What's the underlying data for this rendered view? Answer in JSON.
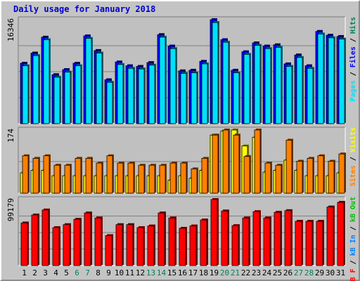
{
  "chart_data": {
    "type": "bar",
    "title": "Daily usage for January 2018",
    "categories": [
      "1",
      "2",
      "3",
      "4",
      "5",
      "6",
      "7",
      "8",
      "9",
      "10",
      "11",
      "12",
      "13",
      "14",
      "15",
      "16",
      "17",
      "18",
      "19",
      "20",
      "21",
      "22",
      "23",
      "24",
      "25",
      "26",
      "27",
      "28",
      "29",
      "30",
      "31"
    ],
    "weekend_days": [
      "6",
      "7",
      "13",
      "14",
      "20",
      "21",
      "27",
      "28"
    ],
    "colors": {
      "hits": "#00805c",
      "files": "#0000ff",
      "pages": "#00e0ff",
      "visits": "#ffff00",
      "sites": "#ff8000",
      "kb_in": "#0080ff",
      "kb_out": "#00c000",
      "kb_f": "#ff0000",
      "weekday_label": "#000000",
      "weekend_label": "#00805c"
    },
    "panels": [
      {
        "id": "hits-files-pages",
        "ymax": 16346,
        "ymax_label": "16346",
        "legend": [
          {
            "key": "pages",
            "label": "Pages",
            "color": "#00e0ff"
          },
          {
            "key": "sep1",
            "label": " / ",
            "color": "#000000"
          },
          {
            "key": "files",
            "label": "Files",
            "color": "#0000ff"
          },
          {
            "key": "sep2",
            "label": " / ",
            "color": "#000000"
          },
          {
            "key": "hits",
            "label": "Hits",
            "color": "#00805c"
          }
        ],
        "series": [
          {
            "name": "Hits",
            "color": "#0000ff",
            "values": [
              9500,
              11100,
              13600,
              7700,
              8500,
              9500,
              13800,
              11500,
              6900,
              9700,
              9100,
              9000,
              9600,
              14000,
              12200,
              8300,
              8400,
              9800,
              16346,
              13200,
              8400,
              11300,
              12700,
              12200,
              12400,
              9400,
              10800,
              9100,
              14500,
              13900,
              13700
            ]
          },
          {
            "name": "Pages",
            "color": "#00e0ff",
            "values": [
              9100,
              10700,
              13200,
              7300,
              8100,
              9100,
              13400,
              11100,
              6500,
              9300,
              8700,
              8600,
              9200,
              13600,
              11800,
              7900,
              8000,
              9400,
              15900,
              12800,
              8000,
              10900,
              12300,
              11800,
              12000,
              9000,
              10400,
              8700,
              14100,
              13500,
              13300
            ]
          }
        ]
      },
      {
        "id": "visits-sites",
        "ymax": 174,
        "ymax_label": "174",
        "legend": [
          {
            "key": "sites",
            "label": "Sites",
            "color": "#ff8000"
          },
          {
            "key": "sep",
            "label": " / ",
            "color": "#000000"
          },
          {
            "key": "visits",
            "label": "Visits",
            "color": "#ffff00"
          }
        ],
        "series": [
          {
            "name": "Visits",
            "color": "#ffff00",
            "values": [
              56,
              63,
              63,
              48,
              48,
              48,
              48,
              48,
              48,
              48,
              48,
              48,
              48,
              48,
              36,
              48,
              41,
              63,
              160,
              171,
              174,
              130,
              154,
              58,
              63,
              91,
              63,
              48,
              48,
              48,
              56
            ]
          },
          {
            "name": "Sites",
            "color": "#ff8000",
            "values": [
              103,
              96,
              103,
              77,
              77,
              96,
              96,
              83,
              103,
              83,
              83,
              77,
              77,
              77,
              83,
              83,
              67,
              96,
              160,
              174,
              160,
              101,
              174,
              83,
              77,
              146,
              88,
              96,
              103,
              88,
              108
            ]
          }
        ]
      },
      {
        "id": "kbytes",
        "ymax": 99179,
        "ymax_label": "99179",
        "legend": [
          {
            "key": "kb_f",
            "label": "kB F",
            "color": "#ff0000"
          },
          {
            "key": "sep1",
            "label": " / ",
            "color": "#000000"
          },
          {
            "key": "kb_in",
            "label": "kB In",
            "color": "#0080ff"
          },
          {
            "key": "sep2",
            "label": " / ",
            "color": "#000000"
          },
          {
            "key": "kb_out",
            "label": "kB Out",
            "color": "#00c000"
          }
        ],
        "series": [
          {
            "name": "kB F",
            "color": "#ff0000",
            "values": [
              64000,
              76000,
              83500,
              57000,
              61500,
              69500,
              79000,
              71500,
              45000,
              61500,
              61500,
              57000,
              59500,
              79000,
              71500,
              56000,
              59500,
              68500,
              99179,
              82000,
              60000,
              71500,
              81000,
              71500,
              80000,
              82500,
              66500,
              66500,
              66500,
              88000,
              95000
            ]
          }
        ]
      }
    ]
  }
}
